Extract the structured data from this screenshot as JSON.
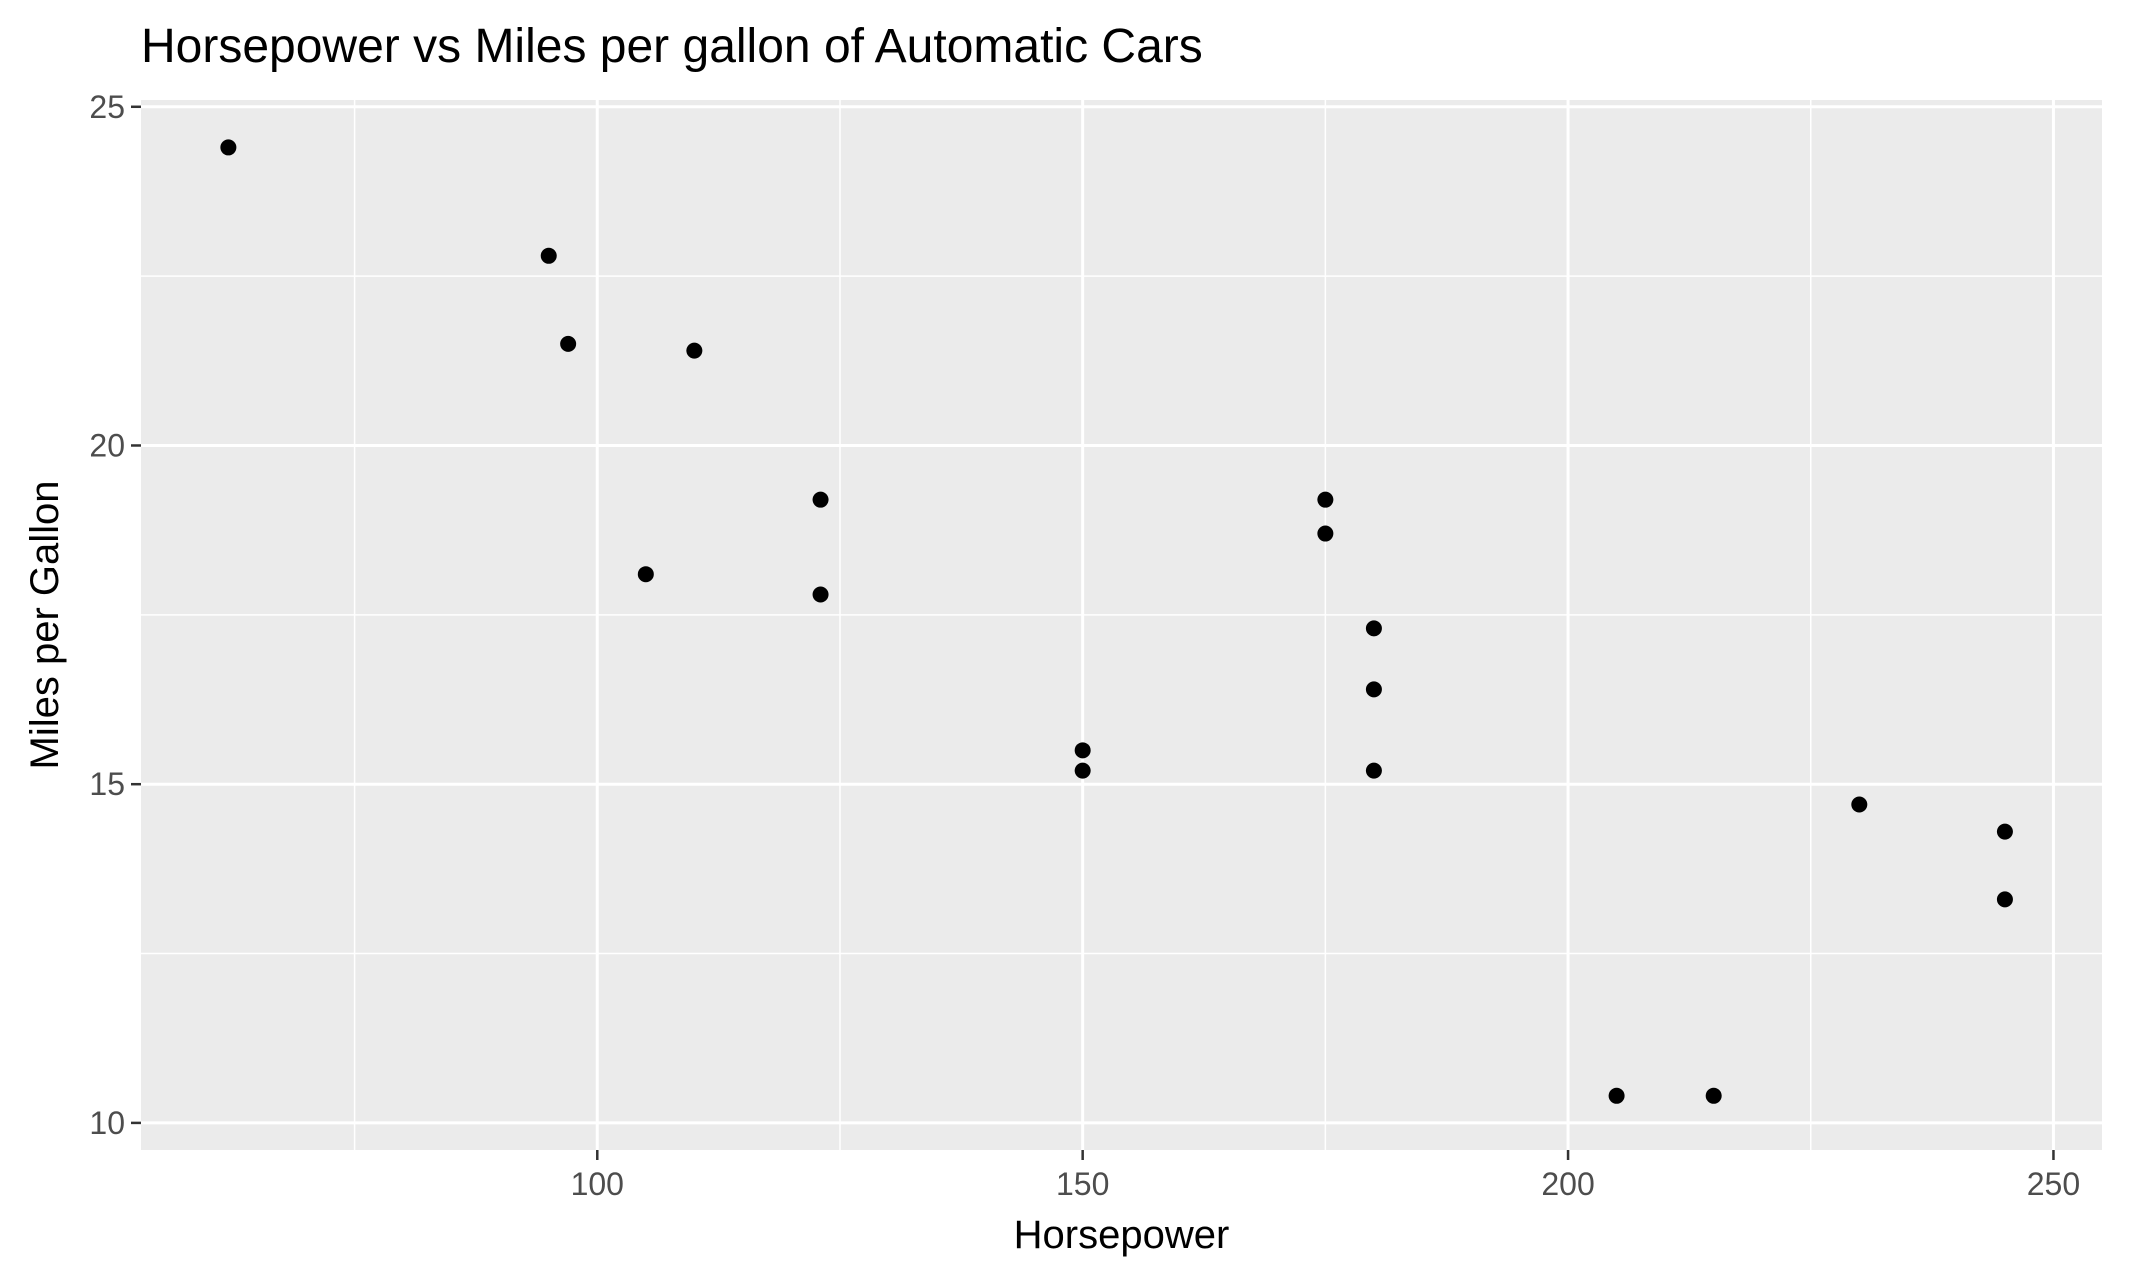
{
  "chart_data": {
    "type": "scatter",
    "title": "Horsepower vs Miles per gallon of Automatic Cars",
    "xlabel": "Horsepower",
    "ylabel": "Miles per Gallon",
    "xlim": [
      53,
      255
    ],
    "ylim": [
      9.6,
      25.1
    ],
    "x_ticks": [
      100,
      150,
      200,
      250
    ],
    "y_ticks": [
      10,
      15,
      20,
      25
    ],
    "x_minor_ticks": [
      75,
      125,
      175,
      225
    ],
    "y_minor_ticks": [
      12.5,
      17.5,
      22.5
    ],
    "grid": true,
    "panel_background": "#ebebeb",
    "point_color": "#000000",
    "x": [
      62,
      95,
      97,
      110,
      105,
      123,
      123,
      150,
      150,
      175,
      175,
      180,
      180,
      180,
      205,
      215,
      230,
      245,
      245
    ],
    "y": [
      24.4,
      22.8,
      21.5,
      21.4,
      18.1,
      19.2,
      17.8,
      15.5,
      15.2,
      19.2,
      18.7,
      17.3,
      16.4,
      15.2,
      10.4,
      10.4,
      14.7,
      14.3,
      13.3
    ]
  }
}
